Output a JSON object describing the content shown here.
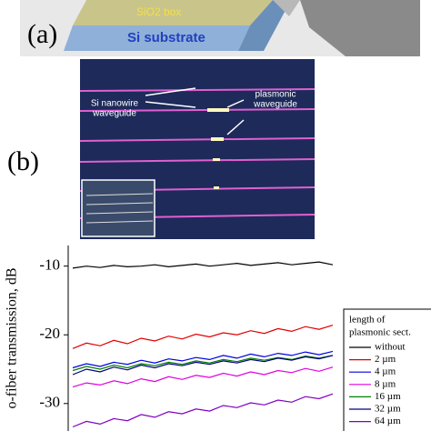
{
  "figure": {
    "panel_a": {
      "label": "(a)",
      "layers": [
        "SiO2 box",
        "Si substrate"
      ]
    },
    "panel_b": {
      "label": "(b)",
      "annotations": [
        [
          "Si nanowire",
          "waveguide"
        ],
        [
          "plasmonic",
          "waveguide"
        ]
      ]
    }
  },
  "chart_data": {
    "type": "line",
    "ylabel": "o-fiber transmission, dB",
    "legend_title": [
      "length of",
      "plasmonic sect."
    ],
    "ylim": [
      -34,
      -7
    ],
    "yticks": [
      -10,
      -20,
      -30
    ],
    "series": [
      {
        "name": "without",
        "color": "#000000",
        "values": [
          -10.3,
          -10.0,
          -10.2,
          -9.9,
          -10.1,
          -10.0,
          -9.8,
          -10.1,
          -9.9,
          -9.7,
          -10.0,
          -9.8,
          -9.6,
          -9.9,
          -9.7,
          -9.5,
          -9.8,
          -9.6,
          -9.4,
          -9.8
        ]
      },
      {
        "name": "2 µm",
        "color": "#e00000",
        "values": [
          -22.0,
          -21.2,
          -21.6,
          -20.8,
          -21.3,
          -20.5,
          -20.9,
          -20.2,
          -20.6,
          -19.9,
          -20.3,
          -19.7,
          -20.0,
          -19.4,
          -19.8,
          -19.1,
          -19.5,
          -18.8,
          -19.2,
          -18.6
        ]
      },
      {
        "name": "4 µm",
        "color": "#0000e0",
        "values": [
          -24.8,
          -24.2,
          -24.6,
          -24.0,
          -24.3,
          -23.7,
          -24.1,
          -23.5,
          -23.8,
          -23.3,
          -23.6,
          -23.0,
          -23.4,
          -22.8,
          -23.2,
          -22.7,
          -23.0,
          -22.5,
          -22.9,
          -22.4
        ]
      },
      {
        "name": "8 µm",
        "color": "#e000e0",
        "values": [
          -27.6,
          -27.0,
          -27.3,
          -26.7,
          -27.1,
          -26.4,
          -26.8,
          -26.1,
          -26.5,
          -25.9,
          -26.2,
          -25.6,
          -26.0,
          -25.4,
          -25.8,
          -25.2,
          -25.5,
          -24.9,
          -25.3,
          -24.7
        ]
      },
      {
        "name": "16 µm",
        "color": "#008000",
        "values": [
          -25.2,
          -24.6,
          -25.0,
          -24.4,
          -24.8,
          -24.2,
          -24.5,
          -24.0,
          -24.3,
          -23.8,
          -24.1,
          -23.6,
          -23.9,
          -23.4,
          -23.7,
          -23.3,
          -23.6,
          -23.1,
          -23.4,
          -23.0
        ]
      },
      {
        "name": "32 µm",
        "color": "#000080",
        "values": [
          -25.8,
          -25.0,
          -25.4,
          -24.7,
          -25.1,
          -24.4,
          -24.8,
          -24.2,
          -24.5,
          -24.0,
          -24.3,
          -23.8,
          -24.1,
          -23.6,
          -23.9,
          -23.4,
          -23.7,
          -23.2,
          -23.5,
          -23.0
        ]
      },
      {
        "name": "64 µm",
        "color": "#8000c0",
        "values": [
          -33.4,
          -32.6,
          -33.0,
          -32.2,
          -32.5,
          -31.6,
          -32.0,
          -31.2,
          -31.5,
          -30.8,
          -31.1,
          -30.3,
          -30.6,
          -29.9,
          -30.2,
          -29.5,
          -29.8,
          -29.0,
          -29.3,
          -28.6
        ]
      }
    ]
  }
}
